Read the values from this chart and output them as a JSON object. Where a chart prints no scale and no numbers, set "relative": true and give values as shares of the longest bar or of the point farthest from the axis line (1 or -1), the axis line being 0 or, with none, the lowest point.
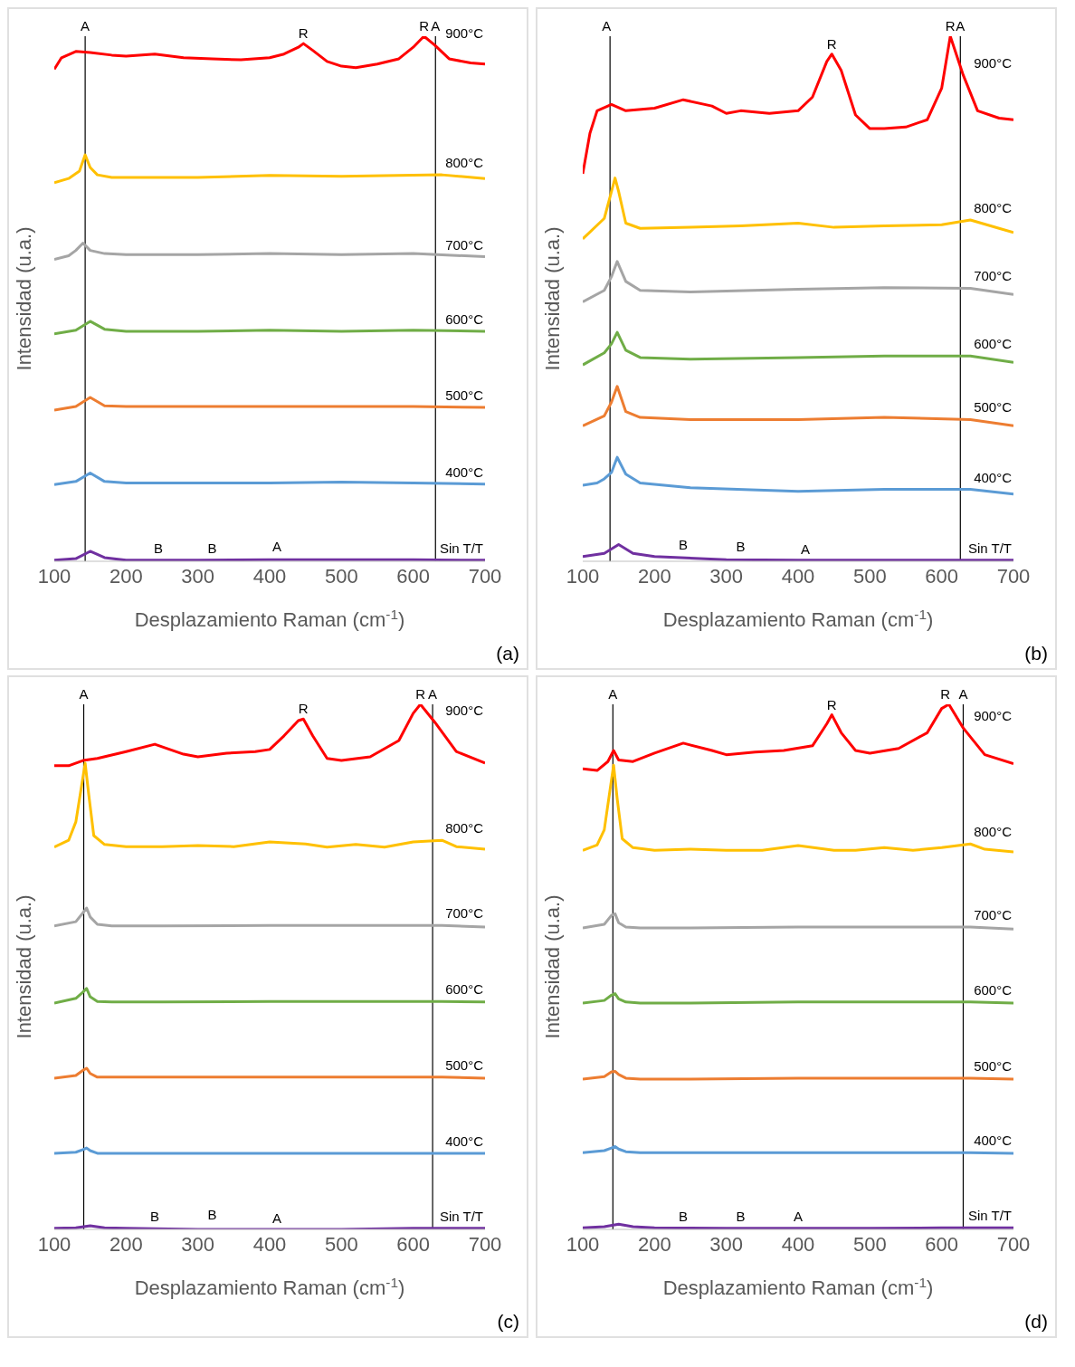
{
  "chart_data": [
    {
      "type": "line",
      "relative": true,
      "xlabel": "Desplazamiento Raman (cm$^{-1}$)",
      "ylabel": "Intensidad (u.a.)",
      "xlim": [
        100,
        700
      ],
      "xticks": [
        100,
        200,
        300,
        400,
        500,
        600,
        700
      ],
      "tick_labels": "x",
      "legend": false,
      "grid": false,
      "marker": "none",
      "line_style": "solid",
      "series": [
        {
          "name": "900°C",
          "color": "#ff0000",
          "x": [
            100,
            110,
            130,
            150,
            180,
            200,
            240,
            280,
            320,
            360,
            400,
            420,
            440,
            447,
            460,
            480,
            500,
            520,
            550,
            580,
            600,
            615,
            630,
            650,
            680,
            700
          ],
          "values": [
            0.937,
            0.959,
            0.971,
            0.969,
            0.964,
            0.962,
            0.966,
            0.959,
            0.957,
            0.955,
            0.959,
            0.966,
            0.979,
            0.986,
            0.973,
            0.952,
            0.943,
            0.94,
            0.947,
            0.957,
            0.979,
            1,
            0.983,
            0.957,
            0.949,
            0.947
          ]
        },
        {
          "name": "800°C",
          "color": "#ffc000",
          "x": [
            100,
            120,
            135,
            143,
            150,
            160,
            180,
            200,
            300,
            400,
            500,
            640,
            700
          ],
          "values": [
            0.721,
            0.729,
            0.743,
            0.774,
            0.75,
            0.736,
            0.731,
            0.731,
            0.731,
            0.735,
            0.733,
            0.736,
            0.729
          ]
        },
        {
          "name": "700°C",
          "color": "#a5a5a5",
          "x": [
            100,
            120,
            130,
            140,
            150,
            170,
            200,
            300,
            400,
            500,
            600,
            700
          ],
          "values": [
            0.575,
            0.582,
            0.592,
            0.606,
            0.592,
            0.586,
            0.584,
            0.584,
            0.586,
            0.584,
            0.586,
            0.58
          ]
        },
        {
          "name": "600°C",
          "color": "#70ad47",
          "x": [
            100,
            130,
            150,
            170,
            200,
            300,
            400,
            500,
            600,
            700
          ],
          "values": [
            0.433,
            0.44,
            0.457,
            0.442,
            0.438,
            0.438,
            0.44,
            0.438,
            0.44,
            0.438
          ]
        },
        {
          "name": "500°C",
          "color": "#ed7d31",
          "x": [
            100,
            130,
            150,
            170,
            200,
            300,
            400,
            500,
            600,
            700
          ],
          "values": [
            0.288,
            0.295,
            0.312,
            0.296,
            0.295,
            0.295,
            0.295,
            0.295,
            0.295,
            0.293
          ]
        },
        {
          "name": "400°C",
          "color": "#5b9bd5",
          "x": [
            100,
            130,
            150,
            170,
            200,
            300,
            400,
            500,
            600,
            700
          ],
          "values": [
            0.146,
            0.152,
            0.168,
            0.152,
            0.149,
            0.149,
            0.149,
            0.151,
            0.149,
            0.147
          ]
        },
        {
          "name": "Sin T/T",
          "color": "#7030a0",
          "x": [
            100,
            130,
            150,
            170,
            200,
            300,
            400,
            500,
            600,
            700
          ],
          "values": [
            0.002,
            0.005,
            0.019,
            0.007,
            0.002,
            0.002,
            0.003,
            0.003,
            0.003,
            0.002
          ]
        }
      ],
      "ref_lines": [
        {
          "axis": "x",
          "value": 143,
          "color": "#000000"
        },
        {
          "axis": "x",
          "value": 631,
          "color": "#000000"
        }
      ],
      "annotations": [
        {
          "text": "A",
          "x": 143,
          "y": 1
        },
        {
          "text": "R",
          "x": 447,
          "y": 0.986
        },
        {
          "text": "R",
          "x": 615,
          "y": 1
        },
        {
          "text": "A",
          "x": 631,
          "y": 1
        },
        {
          "text": "B",
          "x": 245,
          "y": 0.005
        },
        {
          "text": "B",
          "x": 320,
          "y": 0.005
        },
        {
          "text": "A",
          "x": 410,
          "y": 0.008
        },
        "(a)"
      ]
    },
    {
      "type": "line",
      "relative": true,
      "xlabel": "Desplazamiento Raman (cm$^{-1}$)",
      "ylabel": "Intensidad (u.a.)",
      "xlim": [
        100,
        700
      ],
      "xticks": [
        100,
        200,
        300,
        400,
        500,
        600,
        700
      ],
      "tick_labels": "x",
      "legend": false,
      "grid": false,
      "marker": "none",
      "line_style": "solid",
      "series": [
        {
          "name": "900°C",
          "color": "#ff0000",
          "x": [
            100,
            110,
            120,
            140,
            160,
            200,
            240,
            280,
            300,
            320,
            360,
            400,
            420,
            440,
            447,
            460,
            480,
            500,
            520,
            550,
            580,
            600,
            612,
            630,
            650,
            680,
            700
          ],
          "values": [
            0.738,
            0.815,
            0.858,
            0.87,
            0.858,
            0.863,
            0.879,
            0.867,
            0.853,
            0.858,
            0.853,
            0.858,
            0.884,
            0.952,
            0.966,
            0.935,
            0.85,
            0.824,
            0.824,
            0.827,
            0.841,
            0.901,
            1,
            0.926,
            0.858,
            0.844,
            0.841
          ]
        },
        {
          "name": "800°C",
          "color": "#ffc000",
          "x": [
            100,
            130,
            140,
            145,
            150,
            160,
            180,
            250,
            320,
            400,
            450,
            520,
            600,
            640,
            700
          ],
          "values": [
            0.614,
            0.653,
            0.704,
            0.73,
            0.704,
            0.644,
            0.634,
            0.636,
            0.639,
            0.644,
            0.636,
            0.639,
            0.641,
            0.65,
            0.626
          ]
        },
        {
          "name": "700°C",
          "color": "#a5a5a5",
          "x": [
            100,
            130,
            140,
            148,
            160,
            180,
            250,
            400,
            520,
            640,
            700
          ],
          "values": [
            0.494,
            0.516,
            0.542,
            0.571,
            0.533,
            0.516,
            0.513,
            0.518,
            0.521,
            0.52,
            0.508
          ]
        },
        {
          "name": "600°C",
          "color": "#70ad47",
          "x": [
            100,
            130,
            140,
            148,
            160,
            180,
            250,
            400,
            520,
            640,
            700
          ],
          "values": [
            0.374,
            0.397,
            0.414,
            0.436,
            0.402,
            0.388,
            0.385,
            0.388,
            0.391,
            0.391,
            0.379
          ]
        },
        {
          "name": "500°C",
          "color": "#ed7d31",
          "x": [
            100,
            130,
            140,
            148,
            160,
            180,
            250,
            400,
            520,
            640,
            700
          ],
          "values": [
            0.258,
            0.277,
            0.303,
            0.333,
            0.285,
            0.274,
            0.27,
            0.27,
            0.274,
            0.27,
            0.258
          ]
        },
        {
          "name": "400°C",
          "color": "#5b9bd5",
          "x": [
            100,
            120,
            130,
            140,
            148,
            160,
            180,
            250,
            400,
            520,
            640,
            700
          ],
          "values": [
            0.145,
            0.149,
            0.157,
            0.169,
            0.198,
            0.166,
            0.149,
            0.14,
            0.133,
            0.137,
            0.137,
            0.128
          ]
        },
        {
          "name": "Sin T/T",
          "color": "#7030a0",
          "x": [
            100,
            130,
            150,
            170,
            200,
            300,
            400,
            500,
            600,
            700
          ],
          "values": [
            0.009,
            0.015,
            0.032,
            0.015,
            0.009,
            0.003,
            0.002,
            0.002,
            0.002,
            0.002
          ]
        }
      ],
      "ref_lines": [
        {
          "axis": "x",
          "value": 138,
          "color": "#000000"
        },
        {
          "axis": "x",
          "value": 626,
          "color": "#000000"
        }
      ],
      "annotations": [
        {
          "text": "A",
          "x": 133,
          "y": 1
        },
        {
          "text": "R",
          "x": 447,
          "y": 0.966
        },
        {
          "text": "R",
          "x": 612,
          "y": 1
        },
        {
          "text": "A",
          "x": 626,
          "y": 1
        },
        {
          "text": "B",
          "x": 240,
          "y": 0.012
        },
        {
          "text": "B",
          "x": 320,
          "y": 0.008
        },
        {
          "text": "A",
          "x": 410,
          "y": 0.004
        },
        "(b)"
      ]
    },
    {
      "type": "line",
      "relative": true,
      "xlabel": "Desplazamiento Raman (cm$^{-1}$)",
      "ylabel": "Intensidad (u.a.)",
      "xlim": [
        100,
        700
      ],
      "xticks": [
        100,
        200,
        300,
        400,
        500,
        600,
        700
      ],
      "tick_labels": "x",
      "legend": false,
      "grid": false,
      "marker": "none",
      "line_style": "solid",
      "series": [
        {
          "name": "900°C",
          "color": "#ff0000",
          "x": [
            100,
            120,
            140,
            160,
            200,
            240,
            280,
            300,
            340,
            380,
            400,
            420,
            440,
            447,
            460,
            480,
            500,
            540,
            580,
            600,
            610,
            630,
            660,
            700
          ],
          "values": [
            0.883,
            0.883,
            0.893,
            0.897,
            0.91,
            0.924,
            0.905,
            0.9,
            0.907,
            0.91,
            0.914,
            0.94,
            0.969,
            0.972,
            0.94,
            0.897,
            0.893,
            0.9,
            0.931,
            0.983,
            1,
            0.966,
            0.91,
            0.888
          ]
        },
        {
          "name": "800°C",
          "color": "#ffc000",
          "x": [
            100,
            120,
            130,
            138,
            143,
            148,
            155,
            170,
            200,
            250,
            300,
            350,
            400,
            450,
            480,
            520,
            560,
            600,
            640,
            660,
            700
          ],
          "values": [
            0.728,
            0.741,
            0.776,
            0.845,
            0.888,
            0.828,
            0.75,
            0.733,
            0.729,
            0.729,
            0.731,
            0.729,
            0.738,
            0.734,
            0.728,
            0.733,
            0.728,
            0.738,
            0.741,
            0.729,
            0.724
          ]
        },
        {
          "name": "700°C",
          "color": "#a5a5a5",
          "x": [
            100,
            130,
            140,
            145,
            150,
            160,
            180,
            250,
            400,
            520,
            640,
            700
          ],
          "values": [
            0.578,
            0.586,
            0.603,
            0.612,
            0.595,
            0.581,
            0.578,
            0.578,
            0.579,
            0.579,
            0.579,
            0.576
          ]
        },
        {
          "name": "600°C",
          "color": "#70ad47",
          "x": [
            100,
            130,
            140,
            145,
            150,
            160,
            180,
            250,
            400,
            520,
            640,
            700
          ],
          "values": [
            0.431,
            0.44,
            0.452,
            0.459,
            0.443,
            0.434,
            0.433,
            0.433,
            0.434,
            0.434,
            0.434,
            0.433
          ]
        },
        {
          "name": "500°C",
          "color": "#ed7d31",
          "x": [
            100,
            130,
            140,
            145,
            150,
            160,
            180,
            250,
            400,
            520,
            640,
            700
          ],
          "values": [
            0.288,
            0.293,
            0.303,
            0.307,
            0.297,
            0.29,
            0.29,
            0.29,
            0.29,
            0.29,
            0.29,
            0.288
          ]
        },
        {
          "name": "400°C",
          "color": "#5b9bd5",
          "x": [
            100,
            130,
            140,
            145,
            150,
            160,
            180,
            250,
            400,
            520,
            640,
            700
          ],
          "values": [
            0.145,
            0.147,
            0.152,
            0.155,
            0.15,
            0.145,
            0.145,
            0.145,
            0.145,
            0.145,
            0.145,
            0.145
          ]
        },
        {
          "name": "Sin T/T",
          "color": "#7030a0",
          "x": [
            100,
            130,
            150,
            170,
            200,
            300,
            400,
            500,
            600,
            700
          ],
          "values": [
            0.002,
            0.003,
            0.007,
            0.003,
            0.002,
            0,
            0,
            0,
            0.002,
            0.002
          ]
        }
      ],
      "ref_lines": [
        {
          "axis": "x",
          "value": 141,
          "color": "#000000"
        },
        {
          "axis": "x",
          "value": 627,
          "color": "#000000"
        }
      ],
      "annotations": [
        {
          "text": "A",
          "x": 141,
          "y": 1
        },
        {
          "text": "R",
          "x": 447,
          "y": 0.972
        },
        {
          "text": "R",
          "x": 610,
          "y": 1
        },
        {
          "text": "A",
          "x": 627,
          "y": 1
        },
        {
          "text": "B",
          "x": 240,
          "y": 0.005
        },
        {
          "text": "B",
          "x": 320,
          "y": 0.008
        },
        {
          "text": "A",
          "x": 410,
          "y": 0.002
        },
        "(c)"
      ]
    },
    {
      "type": "line",
      "relative": true,
      "xlabel": "Desplazamiento Raman (cm$^{-1}$)",
      "ylabel": "Intensidad (u.a.)",
      "xlim": [
        100,
        700
      ],
      "xticks": [
        100,
        200,
        300,
        400,
        500,
        600,
        700
      ],
      "tick_labels": "x",
      "legend": false,
      "grid": false,
      "marker": "none",
      "line_style": "solid",
      "series": [
        {
          "name": "900°C",
          "color": "#ff0000",
          "x": [
            100,
            120,
            135,
            143,
            150,
            170,
            200,
            240,
            280,
            300,
            340,
            380,
            420,
            440,
            447,
            460,
            480,
            500,
            540,
            580,
            600,
            610,
            630,
            660,
            700
          ],
          "values": [
            0.877,
            0.874,
            0.891,
            0.912,
            0.894,
            0.891,
            0.907,
            0.926,
            0.912,
            0.904,
            0.909,
            0.912,
            0.921,
            0.963,
            0.98,
            0.946,
            0.912,
            0.907,
            0.916,
            0.946,
            0.992,
            1,
            0.955,
            0.904,
            0.887
          ]
        },
        {
          "name": "800°C",
          "color": "#ffc000",
          "x": [
            100,
            120,
            130,
            138,
            143,
            148,
            155,
            170,
            200,
            250,
            300,
            350,
            400,
            450,
            480,
            520,
            560,
            600,
            640,
            660,
            700
          ],
          "values": [
            0.722,
            0.732,
            0.761,
            0.837,
            0.884,
            0.82,
            0.744,
            0.727,
            0.722,
            0.724,
            0.722,
            0.722,
            0.731,
            0.722,
            0.722,
            0.727,
            0.722,
            0.727,
            0.734,
            0.724,
            0.719
          ]
        },
        {
          "name": "700°C",
          "color": "#a5a5a5",
          "x": [
            100,
            130,
            140,
            145,
            150,
            160,
            180,
            250,
            400,
            520,
            640,
            700
          ],
          "values": [
            0.574,
            0.581,
            0.598,
            0.601,
            0.584,
            0.576,
            0.574,
            0.574,
            0.576,
            0.576,
            0.576,
            0.572
          ]
        },
        {
          "name": "600°C",
          "color": "#70ad47",
          "x": [
            100,
            130,
            140,
            145,
            150,
            160,
            180,
            250,
            400,
            520,
            640,
            700
          ],
          "values": [
            0.431,
            0.436,
            0.446,
            0.449,
            0.439,
            0.433,
            0.431,
            0.431,
            0.433,
            0.433,
            0.433,
            0.431
          ]
        },
        {
          "name": "500°C",
          "color": "#ed7d31",
          "x": [
            100,
            130,
            140,
            145,
            150,
            160,
            180,
            250,
            400,
            520,
            640,
            700
          ],
          "values": [
            0.286,
            0.291,
            0.3,
            0.301,
            0.295,
            0.288,
            0.286,
            0.286,
            0.288,
            0.288,
            0.288,
            0.286
          ]
        },
        {
          "name": "400°C",
          "color": "#5b9bd5",
          "x": [
            100,
            130,
            140,
            145,
            150,
            160,
            180,
            250,
            400,
            520,
            640,
            700
          ],
          "values": [
            0.146,
            0.15,
            0.155,
            0.158,
            0.153,
            0.148,
            0.146,
            0.146,
            0.146,
            0.146,
            0.146,
            0.145
          ]
        },
        {
          "name": "Sin T/T",
          "color": "#7030a0",
          "x": [
            100,
            130,
            150,
            170,
            200,
            300,
            400,
            500,
            600,
            700
          ],
          "values": [
            0.003,
            0.005,
            0.01,
            0.005,
            0.003,
            0.002,
            0.002,
            0.002,
            0.003,
            0.003
          ]
        }
      ],
      "ref_lines": [
        {
          "axis": "x",
          "value": 142,
          "color": "#000000"
        },
        {
          "axis": "x",
          "value": 630,
          "color": "#000000"
        }
      ],
      "annotations": [
        {
          "text": "A",
          "x": 142,
          "y": 1
        },
        {
          "text": "R",
          "x": 447,
          "y": 0.98
        },
        {
          "text": "R",
          "x": 605,
          "y": 1
        },
        {
          "text": "A",
          "x": 630,
          "y": 1
        },
        {
          "text": "B",
          "x": 240,
          "y": 0.005
        },
        {
          "text": "B",
          "x": 320,
          "y": 0.005
        },
        {
          "text": "A",
          "x": 400,
          "y": 0.005
        },
        "(d)"
      ]
    }
  ]
}
